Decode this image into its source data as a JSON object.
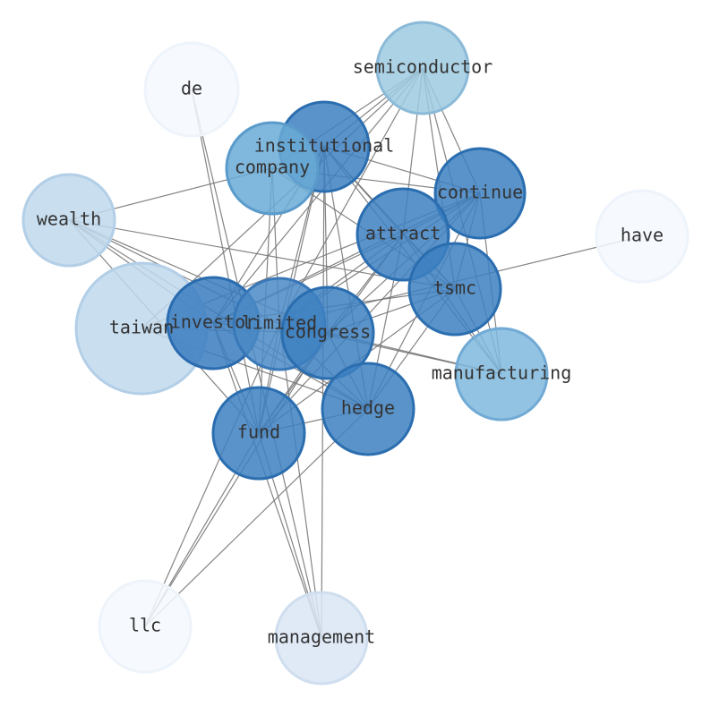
{
  "nodes": [
    {
      "label": "semiconductor"
    },
    {
      "label": "de"
    },
    {
      "label": "institutional"
    },
    {
      "label": "company"
    },
    {
      "label": "continue"
    },
    {
      "label": "wealth"
    },
    {
      "label": "attract"
    },
    {
      "label": "have"
    },
    {
      "label": "tsmc"
    },
    {
      "label": "taiwan"
    },
    {
      "label": "investor"
    },
    {
      "label": "limited"
    },
    {
      "label": "congress"
    },
    {
      "label": "manufacturing"
    },
    {
      "label": "hedge"
    },
    {
      "label": "fund"
    },
    {
      "label": "llc"
    },
    {
      "label": "management"
    }
  ]
}
